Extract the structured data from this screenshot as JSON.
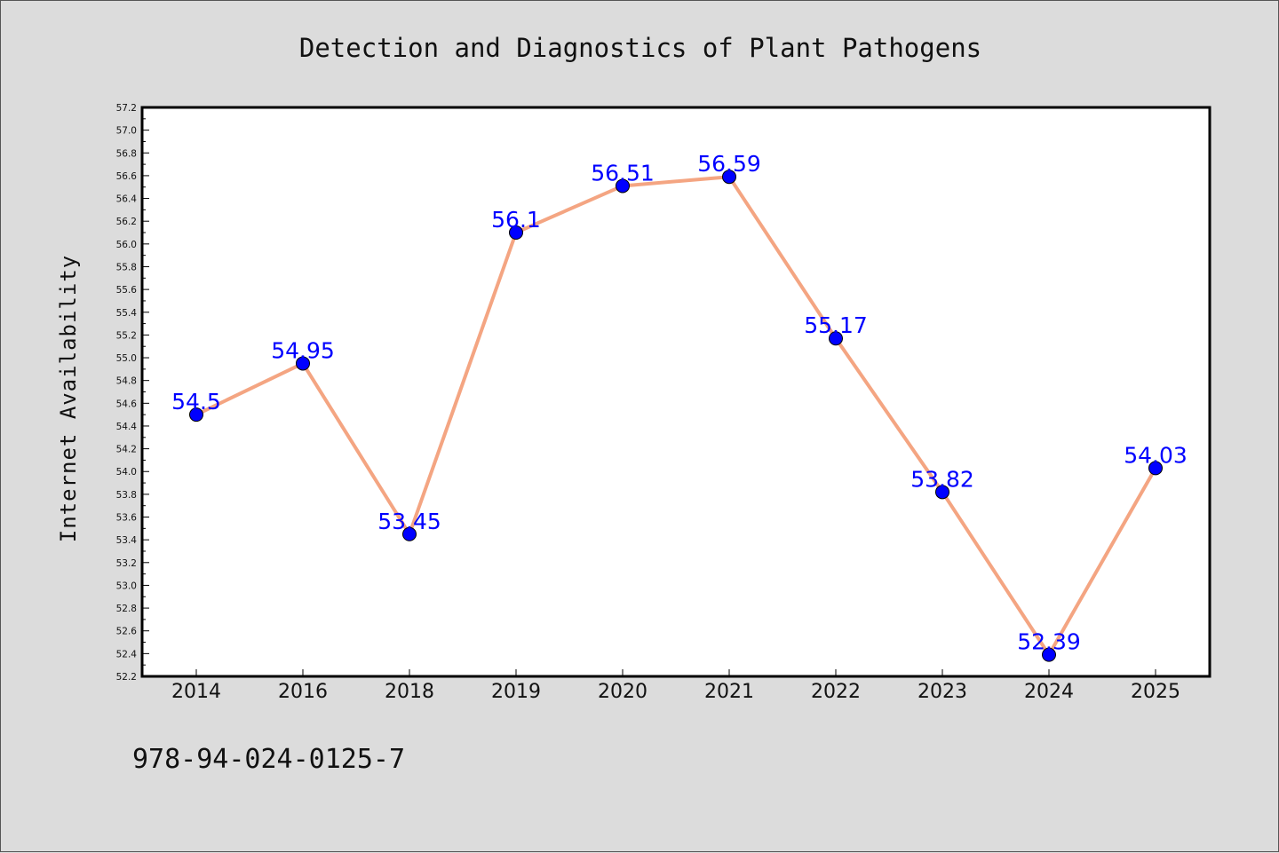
{
  "chart_data": {
    "type": "line",
    "title": "Detection and Diagnostics of Plant Pathogens",
    "ylabel": "Internet Availability",
    "xlabel": "",
    "categories": [
      "2014",
      "2016",
      "2018",
      "2019",
      "2020",
      "2021",
      "2022",
      "2023",
      "2024",
      "2025"
    ],
    "series": [
      {
        "values": [
          54.5,
          54.95,
          53.45,
          56.1,
          56.51,
          56.59,
          55.17,
          53.82,
          52.39,
          54.03
        ],
        "labels": [
          "54.5",
          "54.95",
          "53.45",
          "56.1",
          "56.51",
          "56.59",
          "55.17",
          "53.82",
          "52.39",
          "54.03"
        ],
        "line_color": "#f4a582",
        "marker_color": "#0000ff",
        "label_color": "#0000ff"
      }
    ],
    "ylim": [
      52.2,
      57.2
    ],
    "yticks": [
      "52.2",
      "52.4",
      "52.6",
      "52.8",
      "53.0",
      "53.2",
      "53.4",
      "53.6",
      "53.8",
      "54.0",
      "54.2",
      "54.4",
      "54.6",
      "54.8",
      "55.0",
      "55.2",
      "55.4",
      "55.6",
      "55.8",
      "56.0",
      "56.2",
      "56.4",
      "56.6",
      "56.8",
      "57.0",
      "57.2"
    ],
    "grid": false,
    "legend": "none"
  },
  "footer": {
    "isbn": "978-94-024-0125-7"
  },
  "colors": {
    "background": "#dcdcdc",
    "plot_background": "#ffffff"
  }
}
